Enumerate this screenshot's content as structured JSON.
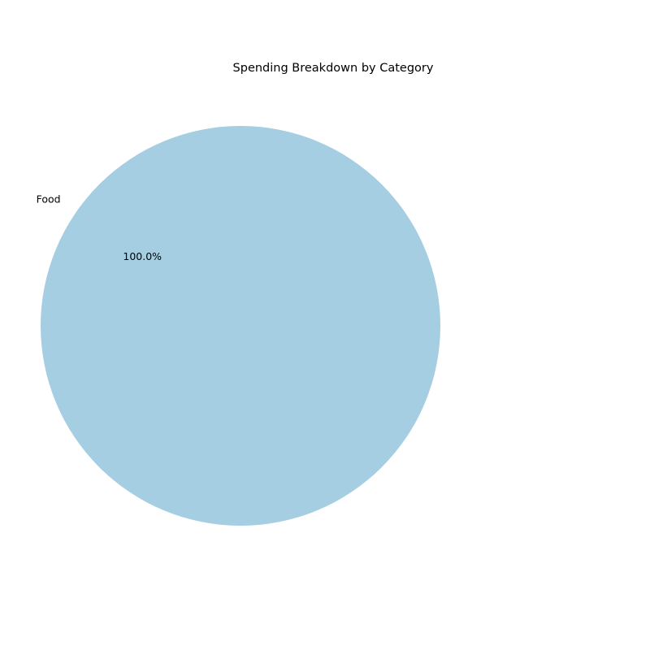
{
  "chart_data": {
    "type": "pie",
    "title": "Spending Breakdown by Category",
    "categories": [
      "Food"
    ],
    "values": [
      100
    ],
    "percent_labels": [
      "100.0%"
    ],
    "colors": [
      "#a6cee3"
    ],
    "start_angle": 90,
    "legend": "none"
  }
}
